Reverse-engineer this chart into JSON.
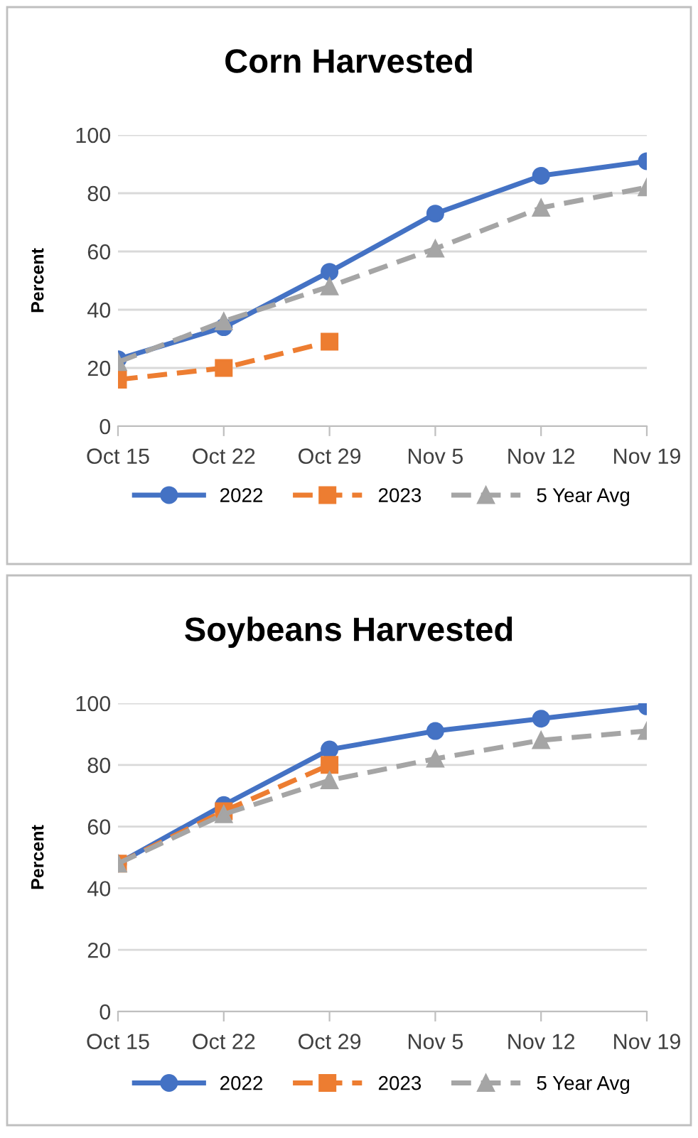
{
  "chart_data": [
    {
      "type": "line",
      "title": "Corn Harvested",
      "ylabel": "Percent",
      "categories": [
        "Oct 15",
        "Oct 22",
        "Oct 29",
        "Nov 5",
        "Nov 12",
        "Nov 19"
      ],
      "ylim": [
        0,
        100
      ],
      "yticks": [
        0,
        20,
        40,
        60,
        80,
        100
      ],
      "grid": "y",
      "legend": "bottom",
      "series": [
        {
          "name": "2022",
          "color": "#4472c4",
          "marker": "circle",
          "line_style": "solid",
          "values": [
            23,
            34,
            53,
            73,
            86,
            91
          ]
        },
        {
          "name": "2023",
          "color": "#ed7d31",
          "marker": "square",
          "line_style": "dashed",
          "values": [
            16,
            20,
            29,
            null,
            null,
            null
          ]
        },
        {
          "name": "5 Year Avg",
          "color": "#a5a5a5",
          "marker": "triangle",
          "line_style": "dashed",
          "values": [
            22,
            36,
            48,
            61,
            75,
            82
          ]
        }
      ]
    },
    {
      "type": "line",
      "title": "Soybeans Harvested",
      "ylabel": "Percent",
      "categories": [
        "Oct 15",
        "Oct 22",
        "Oct 29",
        "Nov 5",
        "Nov 12",
        "Nov 19"
      ],
      "ylim": [
        0,
        100
      ],
      "yticks": [
        0,
        20,
        40,
        60,
        80,
        100
      ],
      "grid": "y",
      "legend": "bottom",
      "series": [
        {
          "name": "2022",
          "color": "#4472c4",
          "marker": "circle",
          "line_style": "solid",
          "values": [
            48,
            67,
            85,
            91,
            95,
            99
          ]
        },
        {
          "name": "2023",
          "color": "#ed7d31",
          "marker": "square",
          "line_style": "dashed",
          "values": [
            48,
            65,
            80,
            null,
            null,
            null
          ]
        },
        {
          "name": "5 Year Avg",
          "color": "#a5a5a5",
          "marker": "triangle",
          "line_style": "dashed",
          "values": [
            48,
            64,
            75,
            82,
            88,
            91
          ]
        }
      ]
    }
  ]
}
